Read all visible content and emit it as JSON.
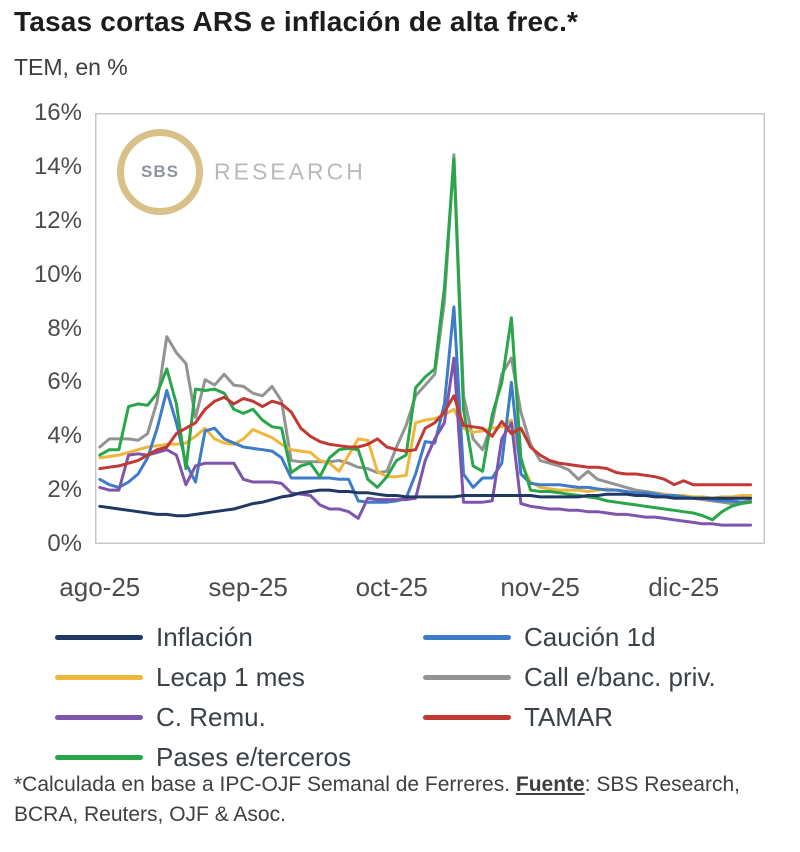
{
  "header": {
    "title": "Tasas cortas ARS e inflación de alta frec.*",
    "subtitle": "TEM, en %"
  },
  "watermark": {
    "logo_text": "SBS",
    "brand_text": "RESEARCH"
  },
  "footnote": {
    "pre": "*Calculada en base a IPC-OJF Semanal de Ferreres. ",
    "source_label": "Fuente",
    "post": ": SBS Research, BCRA, Reuters, OJF & Asoc."
  },
  "colors": {
    "plot_border": "#c7c7c7",
    "axis_text": "#4c4c4e",
    "watermark_ring": "#d9bf88"
  },
  "chart_data": {
    "type": "line",
    "title": "Tasas cortas ARS e inflación de alta frec.*",
    "ylabel": "TEM, en %",
    "ylim": [
      0,
      16
    ],
    "grid": false,
    "legend_position": "bottom",
    "y_ticks": [
      {
        "value": 16,
        "label": "16%"
      },
      {
        "value": 14,
        "label": "14%"
      },
      {
        "value": 12,
        "label": "12%"
      },
      {
        "value": 10,
        "label": "10%"
      },
      {
        "value": 8,
        "label": "8%"
      },
      {
        "value": 6,
        "label": "6%"
      },
      {
        "value": 4,
        "label": "4%"
      },
      {
        "value": 2,
        "label": "2%"
      },
      {
        "value": 0,
        "label": "0%"
      }
    ],
    "x_ticks": [
      {
        "day": 0,
        "label": "ago-25"
      },
      {
        "day": 31,
        "label": "sep-25"
      },
      {
        "day": 61,
        "label": "oct-25"
      },
      {
        "day": 92,
        "label": "nov-25"
      },
      {
        "day": 122,
        "label": "dic-25"
      }
    ],
    "x_unit": "days from 01-ago-2025, daily data sampled every 2 days",
    "x_domain": [
      -1,
      139
    ],
    "x_days": [
      0,
      2,
      4,
      6,
      8,
      10,
      12,
      14,
      16,
      18,
      20,
      22,
      24,
      26,
      28,
      30,
      32,
      34,
      36,
      38,
      40,
      42,
      44,
      46,
      48,
      50,
      52,
      54,
      56,
      58,
      60,
      62,
      64,
      66,
      68,
      70,
      72,
      74,
      76,
      78,
      80,
      82,
      84,
      86,
      88,
      90,
      92,
      94,
      96,
      98,
      100,
      102,
      104,
      106,
      108,
      110,
      112,
      114,
      116,
      118,
      120,
      122,
      124,
      126,
      128,
      130,
      132,
      134,
      136
    ],
    "series": [
      {
        "name": "Inflación",
        "color": "#1f3864",
        "values": [
          1.4,
          1.35,
          1.3,
          1.25,
          1.2,
          1.15,
          1.1,
          1.1,
          1.05,
          1.05,
          1.1,
          1.15,
          1.2,
          1.25,
          1.3,
          1.4,
          1.5,
          1.55,
          1.65,
          1.75,
          1.8,
          1.9,
          1.95,
          2.0,
          2.0,
          1.95,
          1.95,
          1.9,
          1.9,
          1.85,
          1.8,
          1.8,
          1.75,
          1.75,
          1.75,
          1.75,
          1.75,
          1.75,
          1.8,
          1.8,
          1.8,
          1.8,
          1.8,
          1.8,
          1.8,
          1.8,
          1.75,
          1.75,
          1.75,
          1.75,
          1.75,
          1.8,
          1.8,
          1.85,
          1.85,
          1.85,
          1.8,
          1.8,
          1.75,
          1.75,
          1.7,
          1.7,
          1.7,
          1.7,
          1.7,
          1.7,
          1.7,
          1.7,
          1.7
        ]
      },
      {
        "name": "Caución 1d",
        "color": "#3d7cc9",
        "values": [
          2.4,
          2.2,
          2.1,
          2.3,
          2.6,
          3.2,
          4.3,
          5.7,
          4.5,
          3.0,
          2.3,
          4.2,
          4.3,
          3.9,
          3.75,
          3.6,
          3.55,
          3.5,
          3.45,
          3.2,
          2.45,
          2.45,
          2.45,
          2.45,
          2.45,
          2.4,
          2.4,
          1.6,
          1.55,
          1.55,
          1.55,
          1.6,
          1.7,
          2.6,
          3.8,
          3.75,
          5.2,
          8.8,
          2.6,
          2.1,
          2.45,
          2.45,
          3.0,
          6.0,
          2.6,
          2.25,
          2.2,
          2.2,
          2.2,
          2.15,
          2.1,
          2.1,
          2.05,
          2.0,
          2.0,
          1.95,
          1.9,
          1.9,
          1.85,
          1.8,
          1.8,
          1.75,
          1.7,
          1.7,
          1.65,
          1.6,
          1.6,
          1.55,
          1.55
        ]
      },
      {
        "name": "Lecap 1 mes",
        "color": "#eeb73b",
        "values": [
          3.2,
          3.25,
          3.3,
          3.4,
          3.5,
          3.6,
          3.65,
          3.7,
          3.7,
          3.75,
          4.0,
          4.3,
          3.9,
          3.75,
          3.7,
          3.9,
          4.25,
          4.1,
          3.95,
          3.7,
          3.5,
          3.45,
          3.4,
          3.1,
          3.0,
          2.7,
          3.3,
          3.9,
          3.85,
          2.7,
          2.5,
          2.5,
          2.55,
          4.5,
          4.6,
          4.65,
          4.8,
          5.0,
          4.3,
          4.15,
          4.2,
          4.3,
          4.35,
          4.6,
          3.0,
          2.3,
          2.1,
          2.05,
          2.0,
          2.0,
          2.0,
          1.95,
          2.0,
          2.05,
          2.0,
          1.95,
          1.9,
          1.9,
          1.85,
          1.85,
          1.8,
          1.8,
          1.75,
          1.75,
          1.7,
          1.75,
          1.75,
          1.8,
          1.8
        ]
      },
      {
        "name": "Call e/banc. priv.",
        "color": "#939393",
        "values": [
          3.6,
          3.9,
          3.9,
          3.9,
          3.85,
          4.1,
          5.3,
          7.7,
          7.1,
          6.7,
          4.7,
          6.1,
          5.9,
          6.3,
          5.9,
          5.85,
          5.6,
          5.5,
          5.85,
          5.3,
          3.1,
          3.05,
          3.05,
          3.05,
          3.05,
          3.1,
          3.0,
          2.85,
          2.8,
          2.65,
          2.7,
          3.6,
          4.4,
          5.5,
          5.9,
          6.3,
          9.0,
          14.45,
          5.5,
          3.9,
          3.5,
          4.5,
          6.3,
          6.9,
          4.9,
          3.7,
          3.1,
          3.0,
          2.9,
          2.75,
          2.4,
          2.7,
          2.4,
          2.3,
          2.2,
          2.1,
          2.0,
          1.95,
          1.9,
          1.85,
          1.8,
          1.75,
          1.7,
          1.65,
          1.6,
          1.55,
          1.5,
          1.55,
          1.6
        ]
      },
      {
        "name": "C. Remu.",
        "color": "#7d55ad",
        "values": [
          2.1,
          2.0,
          2.0,
          3.3,
          3.35,
          3.3,
          3.4,
          3.5,
          3.3,
          2.2,
          2.9,
          3.0,
          3.0,
          3.0,
          3.0,
          2.4,
          2.3,
          2.3,
          2.3,
          2.25,
          1.9,
          1.85,
          1.8,
          1.45,
          1.3,
          1.3,
          1.2,
          0.95,
          1.7,
          1.65,
          1.65,
          1.65,
          1.65,
          1.7,
          3.1,
          3.9,
          4.5,
          6.9,
          1.55,
          1.55,
          1.55,
          1.6,
          3.9,
          4.5,
          1.5,
          1.4,
          1.35,
          1.3,
          1.3,
          1.25,
          1.25,
          1.2,
          1.2,
          1.15,
          1.1,
          1.1,
          1.05,
          1.0,
          1.0,
          0.95,
          0.9,
          0.85,
          0.8,
          0.75,
          0.75,
          0.7,
          0.7,
          0.7,
          0.7
        ]
      },
      {
        "name": "TAMAR",
        "color": "#c03a33",
        "values": [
          2.8,
          2.85,
          2.9,
          3.0,
          3.1,
          3.3,
          3.5,
          3.6,
          4.1,
          4.3,
          4.5,
          5.0,
          5.3,
          5.45,
          5.2,
          5.4,
          5.3,
          5.1,
          5.3,
          5.2,
          4.9,
          4.3,
          4.0,
          3.8,
          3.7,
          3.65,
          3.6,
          3.6,
          3.7,
          3.9,
          3.6,
          3.5,
          3.45,
          3.5,
          4.3,
          4.5,
          4.9,
          5.5,
          4.4,
          4.35,
          4.3,
          4.0,
          4.55,
          4.1,
          4.3,
          3.6,
          3.3,
          3.1,
          3.0,
          2.95,
          2.9,
          2.85,
          2.85,
          2.8,
          2.65,
          2.6,
          2.6,
          2.55,
          2.5,
          2.4,
          2.2,
          2.35,
          2.2,
          2.2,
          2.2,
          2.2,
          2.2,
          2.2,
          2.2
        ]
      },
      {
        "name": "Pases e/terceros",
        "color": "#2aa64a",
        "values": [
          3.3,
          3.5,
          3.5,
          5.1,
          5.2,
          5.15,
          5.6,
          6.5,
          5.2,
          2.8,
          5.75,
          5.7,
          5.75,
          5.6,
          5.0,
          4.85,
          5.0,
          4.6,
          4.35,
          4.3,
          2.65,
          2.9,
          3.0,
          2.5,
          3.2,
          3.5,
          3.55,
          3.5,
          2.4,
          2.1,
          2.5,
          3.1,
          3.3,
          5.8,
          6.2,
          6.5,
          9.5,
          14.3,
          5.0,
          2.9,
          2.7,
          4.8,
          6.0,
          8.4,
          3.2,
          2.0,
          1.95,
          1.95,
          1.9,
          1.85,
          1.8,
          1.75,
          1.7,
          1.6,
          1.55,
          1.5,
          1.45,
          1.4,
          1.35,
          1.3,
          1.25,
          1.2,
          1.15,
          1.05,
          0.9,
          1.2,
          1.4,
          1.5,
          1.55
        ]
      }
    ],
    "legend_order": [
      "Inflación",
      "Caución 1d",
      "Lecap 1 mes",
      "Call e/banc. priv.",
      "C. Remu.",
      "TAMAR",
      "Pases e/terceros"
    ],
    "draw_order": [
      "Call e/banc. priv.",
      "Lecap 1 mes",
      "Caución 1d",
      "Pases e/terceros",
      "C. Remu.",
      "TAMAR",
      "Inflación"
    ]
  }
}
